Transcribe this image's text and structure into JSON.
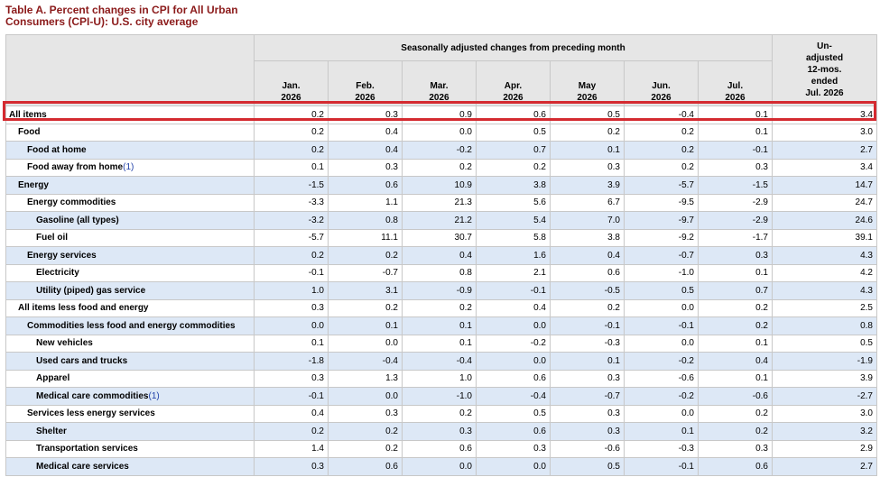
{
  "title_line1": "Table A. Percent changes in CPI for All Urban",
  "title_line2": "Consumers (CPI-U): U.S. city average",
  "header": {
    "group_label": "Seasonally adjusted changes from preceding month",
    "months": [
      {
        "month": "Jan.",
        "year": "2026"
      },
      {
        "month": "Feb.",
        "year": "2026"
      },
      {
        "month": "Mar.",
        "year": "2026"
      },
      {
        "month": "Apr.",
        "year": "2026"
      },
      {
        "month": "May",
        "year": "2026"
      },
      {
        "month": "Jun.",
        "year": "2026"
      },
      {
        "month": "Jul.",
        "year": "2026"
      }
    ],
    "unadjusted": [
      "Un-",
      "adjusted",
      "12-mos.",
      "ended",
      "Jul. 2026"
    ]
  },
  "footnote_marker": "(1)",
  "rows": [
    {
      "label": "All items",
      "indent": 0,
      "values": [
        "0.2",
        "0.3",
        "0.9",
        "0.6",
        "0.5",
        "-0.4",
        "0.1",
        "3.4"
      ],
      "highlight": true
    },
    {
      "label": "Food",
      "indent": 1,
      "values": [
        "0.2",
        "0.4",
        "0.0",
        "0.5",
        "0.2",
        "0.2",
        "0.1",
        "3.0"
      ]
    },
    {
      "label": "Food at home",
      "indent": 2,
      "values": [
        "0.2",
        "0.4",
        "-0.2",
        "0.7",
        "0.1",
        "0.2",
        "-0.1",
        "2.7"
      ]
    },
    {
      "label": "Food away from home",
      "indent": 2,
      "fn": true,
      "values": [
        "0.1",
        "0.3",
        "0.2",
        "0.2",
        "0.3",
        "0.2",
        "0.3",
        "3.4"
      ]
    },
    {
      "label": "Energy",
      "indent": 1,
      "values": [
        "-1.5",
        "0.6",
        "10.9",
        "3.8",
        "3.9",
        "-5.7",
        "-1.5",
        "14.7"
      ]
    },
    {
      "label": "Energy commodities",
      "indent": 2,
      "values": [
        "-3.3",
        "1.1",
        "21.3",
        "5.6",
        "6.7",
        "-9.5",
        "-2.9",
        "24.7"
      ]
    },
    {
      "label": "Gasoline (all types)",
      "indent": 3,
      "values": [
        "-3.2",
        "0.8",
        "21.2",
        "5.4",
        "7.0",
        "-9.7",
        "-2.9",
        "24.6"
      ]
    },
    {
      "label": "Fuel oil",
      "indent": 3,
      "values": [
        "-5.7",
        "11.1",
        "30.7",
        "5.8",
        "3.8",
        "-9.2",
        "-1.7",
        "39.1"
      ]
    },
    {
      "label": "Energy services",
      "indent": 2,
      "values": [
        "0.2",
        "0.2",
        "0.4",
        "1.6",
        "0.4",
        "-0.7",
        "0.3",
        "4.3"
      ]
    },
    {
      "label": "Electricity",
      "indent": 3,
      "values": [
        "-0.1",
        "-0.7",
        "0.8",
        "2.1",
        "0.6",
        "-1.0",
        "0.1",
        "4.2"
      ]
    },
    {
      "label": "Utility (piped) gas service",
      "indent": 3,
      "values": [
        "1.0",
        "3.1",
        "-0.9",
        "-0.1",
        "-0.5",
        "0.5",
        "0.7",
        "4.3"
      ]
    },
    {
      "label": "All items less food and energy",
      "indent": 1,
      "values": [
        "0.3",
        "0.2",
        "0.2",
        "0.4",
        "0.2",
        "0.0",
        "0.2",
        "2.5"
      ]
    },
    {
      "label": "Commodities less food and energy commodities",
      "indent": 2,
      "values": [
        "0.0",
        "0.1",
        "0.1",
        "0.0",
        "-0.1",
        "-0.1",
        "0.2",
        "0.8"
      ]
    },
    {
      "label": "New vehicles",
      "indent": 3,
      "values": [
        "0.1",
        "0.0",
        "0.1",
        "-0.2",
        "-0.3",
        "0.0",
        "0.1",
        "0.5"
      ]
    },
    {
      "label": "Used cars and trucks",
      "indent": 3,
      "values": [
        "-1.8",
        "-0.4",
        "-0.4",
        "0.0",
        "0.1",
        "-0.2",
        "0.4",
        "-1.9"
      ]
    },
    {
      "label": "Apparel",
      "indent": 3,
      "values": [
        "0.3",
        "1.3",
        "1.0",
        "0.6",
        "0.3",
        "-0.6",
        "0.1",
        "3.9"
      ]
    },
    {
      "label": "Medical care commodities",
      "indent": 3,
      "fn": true,
      "values": [
        "-0.1",
        "0.0",
        "-1.0",
        "-0.4",
        "-0.7",
        "-0.2",
        "-0.6",
        "-2.7"
      ]
    },
    {
      "label": "Services less energy services",
      "indent": 2,
      "values": [
        "0.4",
        "0.3",
        "0.2",
        "0.5",
        "0.3",
        "0.0",
        "0.2",
        "3.0"
      ]
    },
    {
      "label": "Shelter",
      "indent": 3,
      "values": [
        "0.2",
        "0.2",
        "0.3",
        "0.6",
        "0.3",
        "0.1",
        "0.2",
        "3.2"
      ]
    },
    {
      "label": "Transportation services",
      "indent": 3,
      "values": [
        "1.4",
        "0.2",
        "0.6",
        "0.3",
        "-0.6",
        "-0.3",
        "0.3",
        "2.9"
      ]
    },
    {
      "label": "Medical care services",
      "indent": 3,
      "values": [
        "0.3",
        "0.6",
        "0.0",
        "0.0",
        "0.5",
        "-0.1",
        "0.6",
        "2.7"
      ]
    }
  ],
  "colors": {
    "title": "#8b1a1a",
    "header_bg": "#e6e6e6",
    "stripe": "#dde8f6",
    "highlight_border": "#d42a30",
    "footnote": "#1f3fa8"
  }
}
